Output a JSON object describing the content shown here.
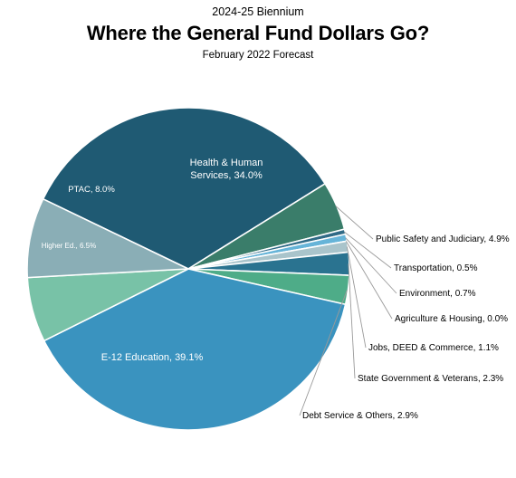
{
  "header": {
    "supertitle": "2024-25 Biennium",
    "title": "Where the General Fund Dollars Go?",
    "subtitle": "February 2022 Forecast"
  },
  "chart_data": {
    "type": "pie",
    "slices": [
      {
        "label": "Health & Human Services",
        "value": 34.0,
        "text": "Health & Human Services, 34.0%",
        "lines": [
          "Health & Human",
          "Services, 34.0%"
        ],
        "color": "#1f5a73",
        "placement": "inside"
      },
      {
        "label": "Public Safety and Judiciary",
        "value": 4.9,
        "text": "Public Safety and Judiciary, 4.9%",
        "color": "#3a7d6a",
        "placement": "outside"
      },
      {
        "label": "Transportation",
        "value": 0.5,
        "text": "Transportation, 0.5%",
        "color": "#2f6a86",
        "placement": "outside"
      },
      {
        "label": "Environment",
        "value": 0.7,
        "text": "Environment, 0.7%",
        "color": "#66b4d8",
        "placement": "outside"
      },
      {
        "label": "Agriculture & Housing",
        "value": 0.0,
        "text": "Agriculture & Housing, 0.0%",
        "color": "#8fbfd0",
        "placement": "outside"
      },
      {
        "label": "Jobs, DEED & Commerce",
        "value": 1.1,
        "text": "Jobs, DEED & Commerce, 1.1%",
        "color": "#a9c4cb",
        "placement": "outside"
      },
      {
        "label": "State Government & Veterans",
        "value": 2.3,
        "text": "State Government & Veterans, 2.3%",
        "color": "#2a7390",
        "placement": "outside"
      },
      {
        "label": "Debt Service & Others",
        "value": 2.9,
        "text": "Debt Service & Others, 2.9%",
        "color": "#4eac88",
        "placement": "outside"
      },
      {
        "label": "E-12 Education",
        "value": 39.1,
        "text": "E-12 Education, 39.1%",
        "lines": [
          "E-12 Education, 39.1%"
        ],
        "color": "#3a93bf",
        "placement": "inside"
      },
      {
        "label": "Higher Ed.",
        "value": 6.5,
        "text": "Higher Ed., 6.5%",
        "lines": [
          "Higher Ed., 6.5%"
        ],
        "color": "#78c2a7",
        "placement": "inside"
      },
      {
        "label": "PTAC",
        "value": 8.0,
        "text": "PTAC, 8.0%",
        "lines": [
          "PTAC, 8.0%"
        ],
        "color": "#8aaeb6",
        "placement": "inside"
      }
    ],
    "legend": "none"
  }
}
